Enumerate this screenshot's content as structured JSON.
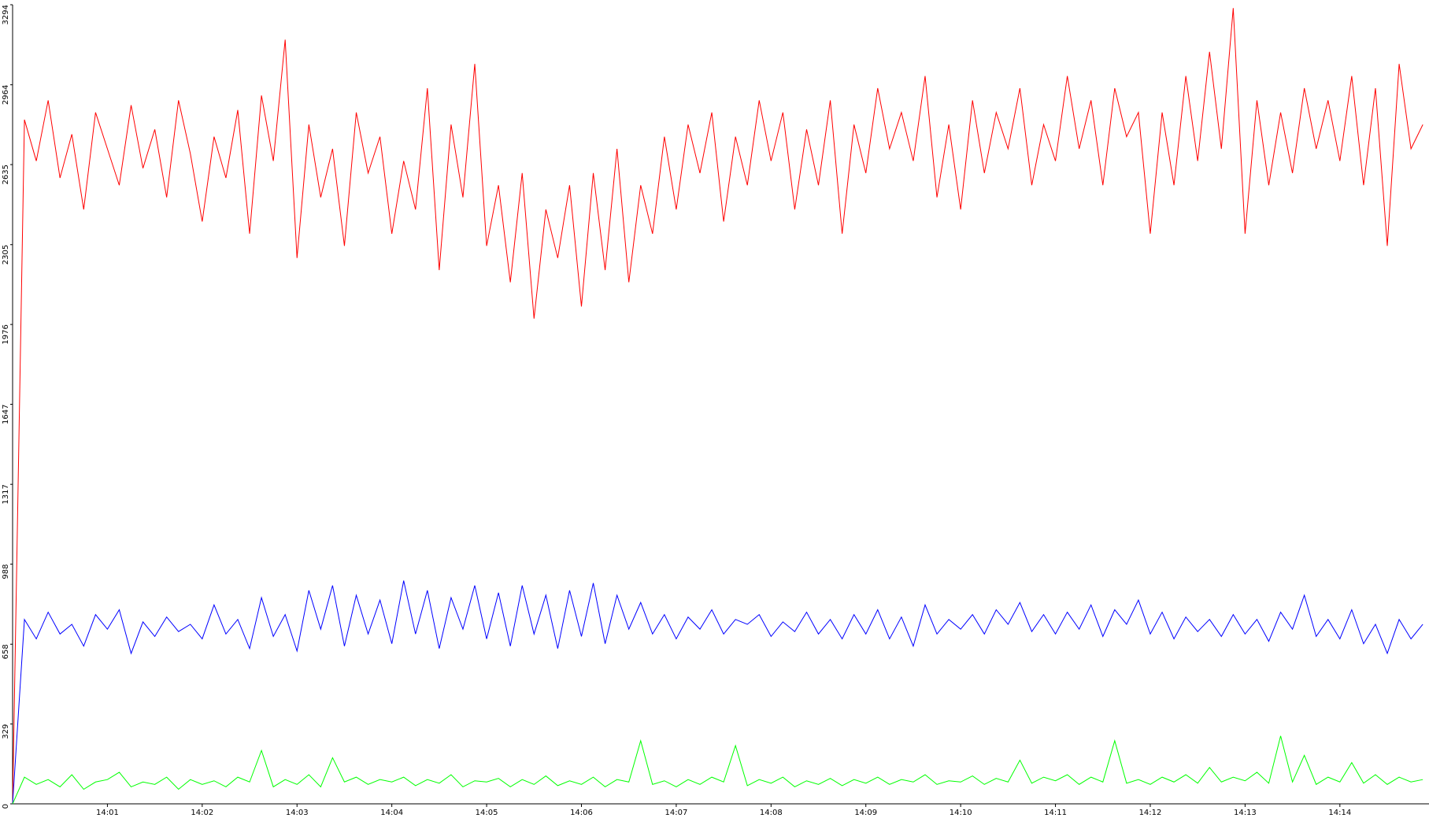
{
  "chart_data": {
    "type": "line",
    "x": [
      0,
      0.125,
      0.25,
      0.375,
      0.5,
      0.625,
      0.75,
      0.875,
      1,
      1.125,
      1.25,
      1.375,
      1.5,
      1.625,
      1.75,
      1.875,
      2,
      2.125,
      2.25,
      2.375,
      2.5,
      2.625,
      2.75,
      2.875,
      3,
      3.125,
      3.25,
      3.375,
      3.5,
      3.625,
      3.75,
      3.875,
      4,
      4.125,
      4.25,
      4.375,
      4.5,
      4.625,
      4.75,
      4.875,
      5,
      5.125,
      5.25,
      5.375,
      5.5,
      5.625,
      5.75,
      5.875,
      6,
      6.125,
      6.25,
      6.375,
      6.5,
      6.625,
      6.75,
      6.875,
      7,
      7.125,
      7.25,
      7.375,
      7.5,
      7.625,
      7.75,
      7.875,
      8,
      8.125,
      8.25,
      8.375,
      8.5,
      8.625,
      8.75,
      8.875,
      9,
      9.125,
      9.25,
      9.375,
      9.5,
      9.625,
      9.75,
      9.875,
      10,
      10.125,
      10.25,
      10.375,
      10.5,
      10.625,
      10.75,
      10.875,
      11,
      11.125,
      11.25,
      11.375,
      11.5,
      11.625,
      11.75,
      11.875,
      12,
      12.125,
      12.25,
      12.375,
      12.5,
      12.625,
      12.75,
      12.875,
      13,
      13.125,
      13.25,
      13.375,
      13.5,
      13.625,
      13.75,
      13.875,
      14,
      14.125,
      14.25,
      14.375,
      14.5,
      14.625,
      14.75,
      14.875
    ],
    "series": [
      {
        "color": "#ff0000",
        "values": [
          0,
          2820,
          2650,
          2900,
          2580,
          2760,
          2450,
          2850,
          2700,
          2550,
          2880,
          2620,
          2780,
          2500,
          2900,
          2680,
          2400,
          2750,
          2580,
          2860,
          2350,
          2920,
          2650,
          3150,
          2250,
          2800,
          2500,
          2700,
          2300,
          2850,
          2600,
          2750,
          2350,
          2650,
          2450,
          2950,
          2200,
          2800,
          2500,
          3050,
          2300,
          2550,
          2150,
          2600,
          2000,
          2450,
          2250,
          2550,
          2050,
          2600,
          2200,
          2700,
          2150,
          2550,
          2350,
          2750,
          2450,
          2800,
          2600,
          2850,
          2400,
          2750,
          2550,
          2900,
          2650,
          2850,
          2450,
          2780,
          2550,
          2900,
          2350,
          2800,
          2600,
          2950,
          2700,
          2850,
          2650,
          3000,
          2500,
          2800,
          2450,
          2900,
          2600,
          2850,
          2700,
          2950,
          2550,
          2800,
          2650,
          3000,
          2700,
          2900,
          2550,
          2950,
          2750,
          2850,
          2350,
          2850,
          2550,
          3000,
          2650,
          3100,
          2700,
          3280,
          2350,
          2900,
          2550,
          2850,
          2600,
          2950,
          2700,
          2900,
          2650,
          3000,
          2550,
          2950,
          2300,
          3050,
          2700,
          2800
        ]
      },
      {
        "color": "#0000ff",
        "values": [
          0,
          760,
          680,
          790,
          700,
          740,
          650,
          780,
          720,
          800,
          620,
          750,
          690,
          770,
          710,
          740,
          680,
          820,
          700,
          760,
          640,
          850,
          690,
          780,
          630,
          880,
          720,
          900,
          650,
          860,
          700,
          840,
          660,
          920,
          700,
          880,
          640,
          850,
          720,
          900,
          680,
          870,
          650,
          900,
          700,
          860,
          640,
          880,
          690,
          910,
          660,
          860,
          720,
          830,
          700,
          780,
          680,
          770,
          720,
          800,
          700,
          760,
          740,
          780,
          690,
          750,
          710,
          790,
          700,
          760,
          680,
          780,
          700,
          800,
          680,
          770,
          650,
          820,
          700,
          760,
          720,
          780,
          700,
          800,
          740,
          830,
          710,
          780,
          700,
          790,
          720,
          820,
          690,
          800,
          740,
          840,
          700,
          790,
          680,
          770,
          710,
          760,
          690,
          780,
          700,
          760,
          670,
          790,
          720,
          860,
          690,
          760,
          680,
          800,
          660,
          740,
          620,
          760,
          680,
          740
        ]
      },
      {
        "color": "#00ff00",
        "values": [
          0,
          110,
          80,
          100,
          70,
          120,
          60,
          90,
          100,
          130,
          70,
          90,
          80,
          110,
          60,
          100,
          80,
          95,
          70,
          110,
          90,
          220,
          70,
          100,
          80,
          120,
          70,
          190,
          90,
          110,
          80,
          100,
          90,
          110,
          75,
          100,
          85,
          120,
          70,
          95,
          90,
          105,
          70,
          100,
          80,
          115,
          75,
          95,
          80,
          110,
          70,
          100,
          90,
          260,
          80,
          95,
          70,
          100,
          80,
          110,
          90,
          240,
          75,
          100,
          85,
          110,
          70,
          95,
          80,
          105,
          75,
          100,
          85,
          110,
          80,
          100,
          90,
          120,
          80,
          95,
          90,
          115,
          80,
          105,
          90,
          180,
          85,
          110,
          95,
          120,
          80,
          110,
          90,
          260,
          85,
          100,
          80,
          110,
          90,
          120,
          85,
          150,
          90,
          110,
          95,
          130,
          85,
          280,
          90,
          200,
          80,
          110,
          90,
          170,
          85,
          120,
          80,
          110,
          90,
          100
        ]
      }
    ],
    "xlim": [
      0,
      14.94
    ],
    "xticks": [
      {
        "value": 1,
        "label": "14:01"
      },
      {
        "value": 2,
        "label": "14:02"
      },
      {
        "value": 3,
        "label": "14:03"
      },
      {
        "value": 4,
        "label": "14:04"
      },
      {
        "value": 5,
        "label": "14:05"
      },
      {
        "value": 6,
        "label": "14:06"
      },
      {
        "value": 7,
        "label": "14:07"
      },
      {
        "value": 8,
        "label": "14:08"
      },
      {
        "value": 9,
        "label": "14:09"
      },
      {
        "value": 10,
        "label": "14:10"
      },
      {
        "value": 11,
        "label": "14:11"
      },
      {
        "value": 12,
        "label": "14:12"
      },
      {
        "value": 13,
        "label": "14:13"
      },
      {
        "value": 14,
        "label": "14:14"
      }
    ],
    "ylim": [
      0,
      3294
    ],
    "yticks": [
      0,
      329,
      658,
      988,
      1317,
      1647,
      1976,
      2305,
      2635,
      2964,
      3294
    ]
  }
}
